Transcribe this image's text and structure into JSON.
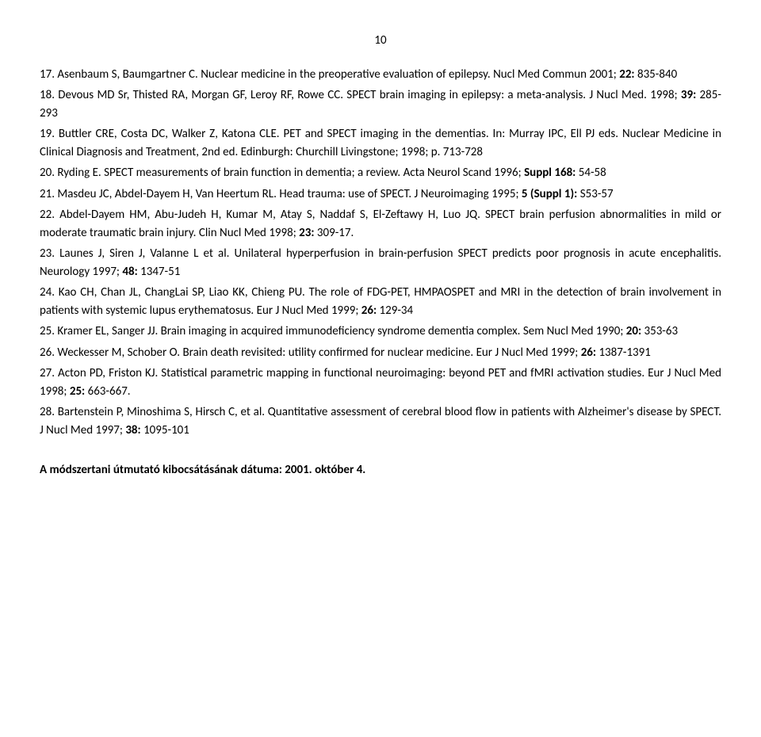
{
  "page_number": "10",
  "references": [
    {
      "num": "17",
      "authors": "Asenbaum S, Baumgartner C.",
      "title": "Nuclear medicine in the preoperative evaluation of epilepsy.",
      "journal": "Nucl Med Commun 2001;",
      "volume": "22:",
      "pages": "835-840"
    },
    {
      "num": "18",
      "authors": "Devous MD Sr, Thisted RA, Morgan GF, Leroy RF, Rowe CC.",
      "title": "SPECT brain imaging in epilepsy: a meta-analysis.",
      "journal": "J Nucl Med. 1998;",
      "volume": "39:",
      "pages": "285-293"
    },
    {
      "num": "19",
      "authors": "Buttler CRE, Costa DC, Walker Z, Katona CLE.",
      "title": "PET and SPECT imaging in the dementias.",
      "in": "In: Murray IPC, Ell PJ eds. Nuclear Medicine in Clinical Diagnosis and Treatment, 2nd ed. Edinburgh: Churchill Livingstone; 1998; p. 713-728"
    },
    {
      "num": "20",
      "authors": "Ryding E.",
      "title": "SPECT measurements of brain function in dementia; a review.",
      "journal": "Acta Neurol Scand 1996;",
      "volume": "Suppl 168:",
      "pages": "54-58"
    },
    {
      "num": "21",
      "authors": "Masdeu JC, Abdel-Dayem H, Van Heertum RL.",
      "title": "Head trauma: use of SPECT.",
      "journal": "J Neuroimaging 1995;",
      "volume": "5 (Suppl 1):",
      "pages": "S53-57"
    },
    {
      "num": "22",
      "authors": "Abdel-Dayem HM, Abu-Judeh H, Kumar M, Atay S, Naddaf S, El-Zeftawy H, Luo JQ.",
      "title": "SPECT brain perfusion abnormalities in mild or moderate traumatic brain injury.",
      "journal": "Clin Nucl Med 1998;",
      "volume": "23:",
      "pages": "309-17."
    },
    {
      "num": "23",
      "authors": "Launes J, Siren J, Valanne L et al.",
      "title": "Unilateral hyperperfusion in brain-perfusion SPECT predicts poor prognosis in acute encephalitis.",
      "journal": "Neurology 1997;",
      "volume": "48:",
      "pages": "1347-51"
    },
    {
      "num": "24",
      "authors": "Kao CH, Chan JL, ChangLai SP, Liao KK, Chieng PU.",
      "title": "The role of FDG-PET, HMPAOSPET and MRI in the detection of brain involvement in patients with systemic lupus erythematosus.",
      "journal": "Eur J Nucl Med 1999;",
      "volume": "26:",
      "pages": "129-34"
    },
    {
      "num": "25",
      "authors": "Kramer EL, Sanger JJ.",
      "title": "Brain imaging in acquired immunodeficiency syndrome dementia complex.",
      "journal": "Sem Nucl Med 1990;",
      "volume": "20:",
      "pages": "353-63"
    },
    {
      "num": "26",
      "authors": "Weckesser M, Schober O.",
      "title": "Brain death revisited: utility confirmed for nuclear medicine.",
      "journal": "Eur J Nucl Med 1999;",
      "volume": "26:",
      "pages": "1387-1391"
    },
    {
      "num": "27",
      "authors": "Acton PD, Friston KJ.",
      "title": "Statistical parametric mapping in functional neuroimaging: beyond PET and fMRI activation studies.",
      "journal": "Eur J Nucl Med 1998;",
      "volume": "25:",
      "pages": "663-667."
    },
    {
      "num": "28",
      "authors": "Bartenstein P, Minoshima S, Hirsch C, et al.",
      "title": "Quantitative assessment of cerebral blood flow in patients with Alzheimer's disease by SPECT.",
      "journal": "J Nucl Med 1997;",
      "volume": "38:",
      "pages": "1095-101"
    }
  ],
  "footer_date": "A módszertani útmutató kibocsátásának dátuma: 2001. október 4."
}
